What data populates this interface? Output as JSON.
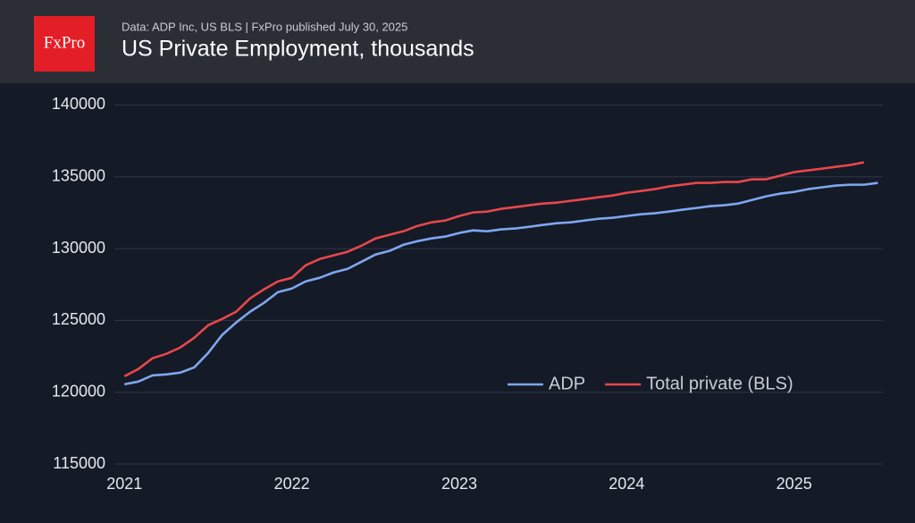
{
  "chart_data": {
    "type": "line",
    "logo": "FxPro",
    "subtitle": "Data: ADP Inc, US BLS | FxPro published July 30, 2025",
    "title": "US Private Employment, thousands",
    "x": [
      2021,
      2021.083,
      2021.167,
      2021.25,
      2021.333,
      2021.417,
      2021.5,
      2021.583,
      2021.667,
      2021.75,
      2021.833,
      2021.917,
      2022,
      2022.083,
      2022.167,
      2022.25,
      2022.333,
      2022.417,
      2022.5,
      2022.583,
      2022.667,
      2022.75,
      2022.833,
      2022.917,
      2023,
      2023.083,
      2023.167,
      2023.25,
      2023.333,
      2023.417,
      2023.5,
      2023.583,
      2023.667,
      2023.75,
      2023.833,
      2023.917,
      2024,
      2024.083,
      2024.167,
      2024.25,
      2024.333,
      2024.417,
      2024.5,
      2024.583,
      2024.667,
      2024.75,
      2024.833,
      2024.917,
      2025,
      2025.083,
      2025.167,
      2025.25,
      2025.333,
      2025.417,
      2025.5
    ],
    "series": [
      {
        "name": "ADP",
        "color": "#7fa6f0",
        "values": [
          120550,
          120740,
          121170,
          121240,
          121360,
          121730,
          122730,
          123980,
          124850,
          125600,
          126220,
          126970,
          127220,
          127720,
          127970,
          128340,
          128590,
          129090,
          129590,
          129840,
          130270,
          130520,
          130710,
          130840,
          131090,
          131270,
          131210,
          131340,
          131400,
          131520,
          131650,
          131770,
          131830,
          131960,
          132080,
          132150,
          132270,
          132390,
          132460,
          132580,
          132710,
          132830,
          132960,
          133020,
          133140,
          133390,
          133640,
          133830,
          133950,
          134140,
          134270,
          134390,
          134450,
          134450,
          134580
        ]
      },
      {
        "name": "Total private (BLS)",
        "color": "#e8474c",
        "values": [
          121110,
          121610,
          122360,
          122670,
          123110,
          123790,
          124660,
          125100,
          125600,
          126530,
          127160,
          127720,
          127970,
          128840,
          129280,
          129530,
          129780,
          130210,
          130710,
          130960,
          131210,
          131580,
          131830,
          131960,
          132270,
          132520,
          132580,
          132770,
          132890,
          133020,
          133140,
          133200,
          133330,
          133450,
          133580,
          133700,
          133890,
          134010,
          134140,
          134330,
          134450,
          134580,
          134580,
          134640,
          134640,
          134830,
          134830,
          135080,
          135330,
          135450,
          135570,
          135700,
          135820,
          136010,
          null
        ]
      }
    ],
    "xlim": [
      2020.94,
      2025.53
    ],
    "xticks": [
      2021,
      2022,
      2023,
      2024,
      2025
    ],
    "ylim": [
      115000,
      141400
    ],
    "yticks": [
      115000,
      120000,
      125000,
      130000,
      135000,
      140000
    ],
    "grid": true,
    "legend": "lower right"
  }
}
